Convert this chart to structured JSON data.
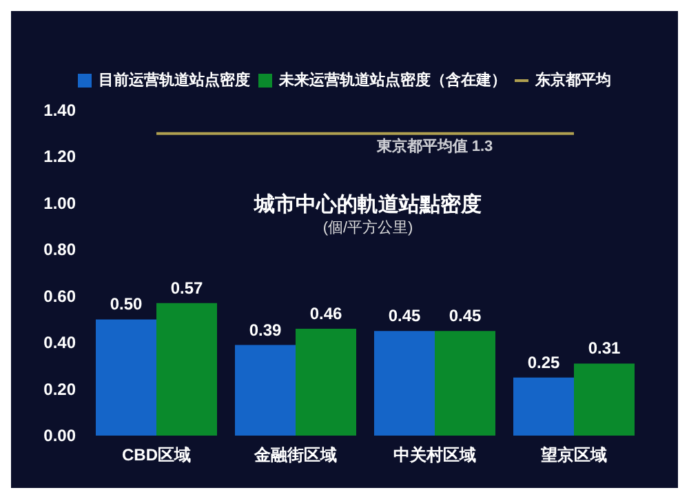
{
  "chart_data": {
    "type": "bar",
    "title": "城市中心的軌道站點密度",
    "subtitle": "(個/平方公里)",
    "categories": [
      "CBD区域",
      "金融街区域",
      "中关村区域",
      "望京区域"
    ],
    "series": [
      {
        "name": "目前运营轨道站点密度",
        "color": "#1565c8",
        "values": [
          0.5,
          0.39,
          0.45,
          0.25
        ],
        "value_labels": [
          "0.50",
          "0.39",
          "0.45",
          "0.25"
        ]
      },
      {
        "name": "未来运营轨道站点密度（含在建）",
        "color": "#0a8a2c",
        "values": [
          0.57,
          0.46,
          0.45,
          0.31
        ],
        "value_labels": [
          "0.57",
          "0.46",
          "0.45",
          "0.31"
        ]
      },
      {
        "name": "东京都平均",
        "type": "line",
        "color": "#b0a050",
        "values": [
          1.3,
          1.3,
          1.3,
          1.3
        ]
      }
    ],
    "annotations": [
      {
        "text": "東京都平均值 1.3",
        "y": 1.3
      }
    ],
    "ylim": [
      0,
      1.4
    ],
    "yticks": [
      {
        "value": 0,
        "label": "0.00"
      },
      {
        "value": 0.2,
        "label": "0.20"
      },
      {
        "value": 0.4,
        "label": "0.40"
      },
      {
        "value": 0.6,
        "label": "0.60"
      },
      {
        "value": 0.8,
        "label": "0.80"
      },
      {
        "value": 1,
        "label": "1.00"
      },
      {
        "value": 1.2,
        "label": "1.20"
      },
      {
        "value": 1.4,
        "label": "1.40"
      }
    ],
    "grid": false,
    "legend": "top",
    "marker": "none"
  }
}
